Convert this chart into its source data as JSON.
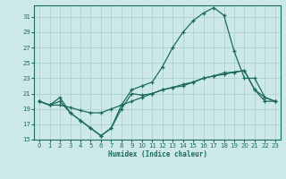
{
  "xlabel": "Humidex (Indice chaleur)",
  "background_color": "#cce8e8",
  "grid_color": "#aacccc",
  "line_color": "#1a6b5a",
  "xlim": [
    -0.5,
    23.5
  ],
  "ylim": [
    15,
    32.5
  ],
  "yticks": [
    15,
    17,
    19,
    21,
    23,
    25,
    27,
    29,
    31
  ],
  "xticks": [
    0,
    1,
    2,
    3,
    4,
    5,
    6,
    7,
    8,
    9,
    10,
    11,
    12,
    13,
    14,
    15,
    16,
    17,
    18,
    19,
    20,
    21,
    22,
    23
  ],
  "x": [
    0,
    1,
    2,
    3,
    4,
    5,
    6,
    7,
    8,
    9,
    10,
    11,
    12,
    13,
    14,
    15,
    16,
    17,
    18,
    19,
    20,
    21,
    22,
    23
  ],
  "line_peak_y": [
    20.0,
    19.5,
    20.5,
    18.5,
    17.5,
    16.5,
    15.5,
    16.5,
    19.5,
    21.5,
    22.0,
    22.5,
    24.5,
    27.0,
    29.0,
    30.5,
    31.5,
    32.2,
    31.2,
    26.5,
    23.0,
    23.0,
    20.5,
    20.0
  ],
  "line_dip_y": [
    20.0,
    19.5,
    20.0,
    18.5,
    17.5,
    16.5,
    15.5,
    16.5,
    19.0,
    21.0,
    20.8,
    21.0,
    21.5,
    21.8,
    22.2,
    22.5,
    23.0,
    23.3,
    23.7,
    23.8,
    24.0,
    21.5,
    20.0,
    20.0
  ],
  "line_flat_y": [
    20.0,
    19.5,
    19.5,
    19.2,
    18.8,
    18.5,
    18.5,
    19.0,
    19.5,
    20.0,
    20.5,
    21.0,
    21.5,
    21.8,
    22.0,
    22.5,
    23.0,
    23.3,
    23.5,
    23.8,
    24.0,
    21.5,
    20.5,
    20.0
  ]
}
